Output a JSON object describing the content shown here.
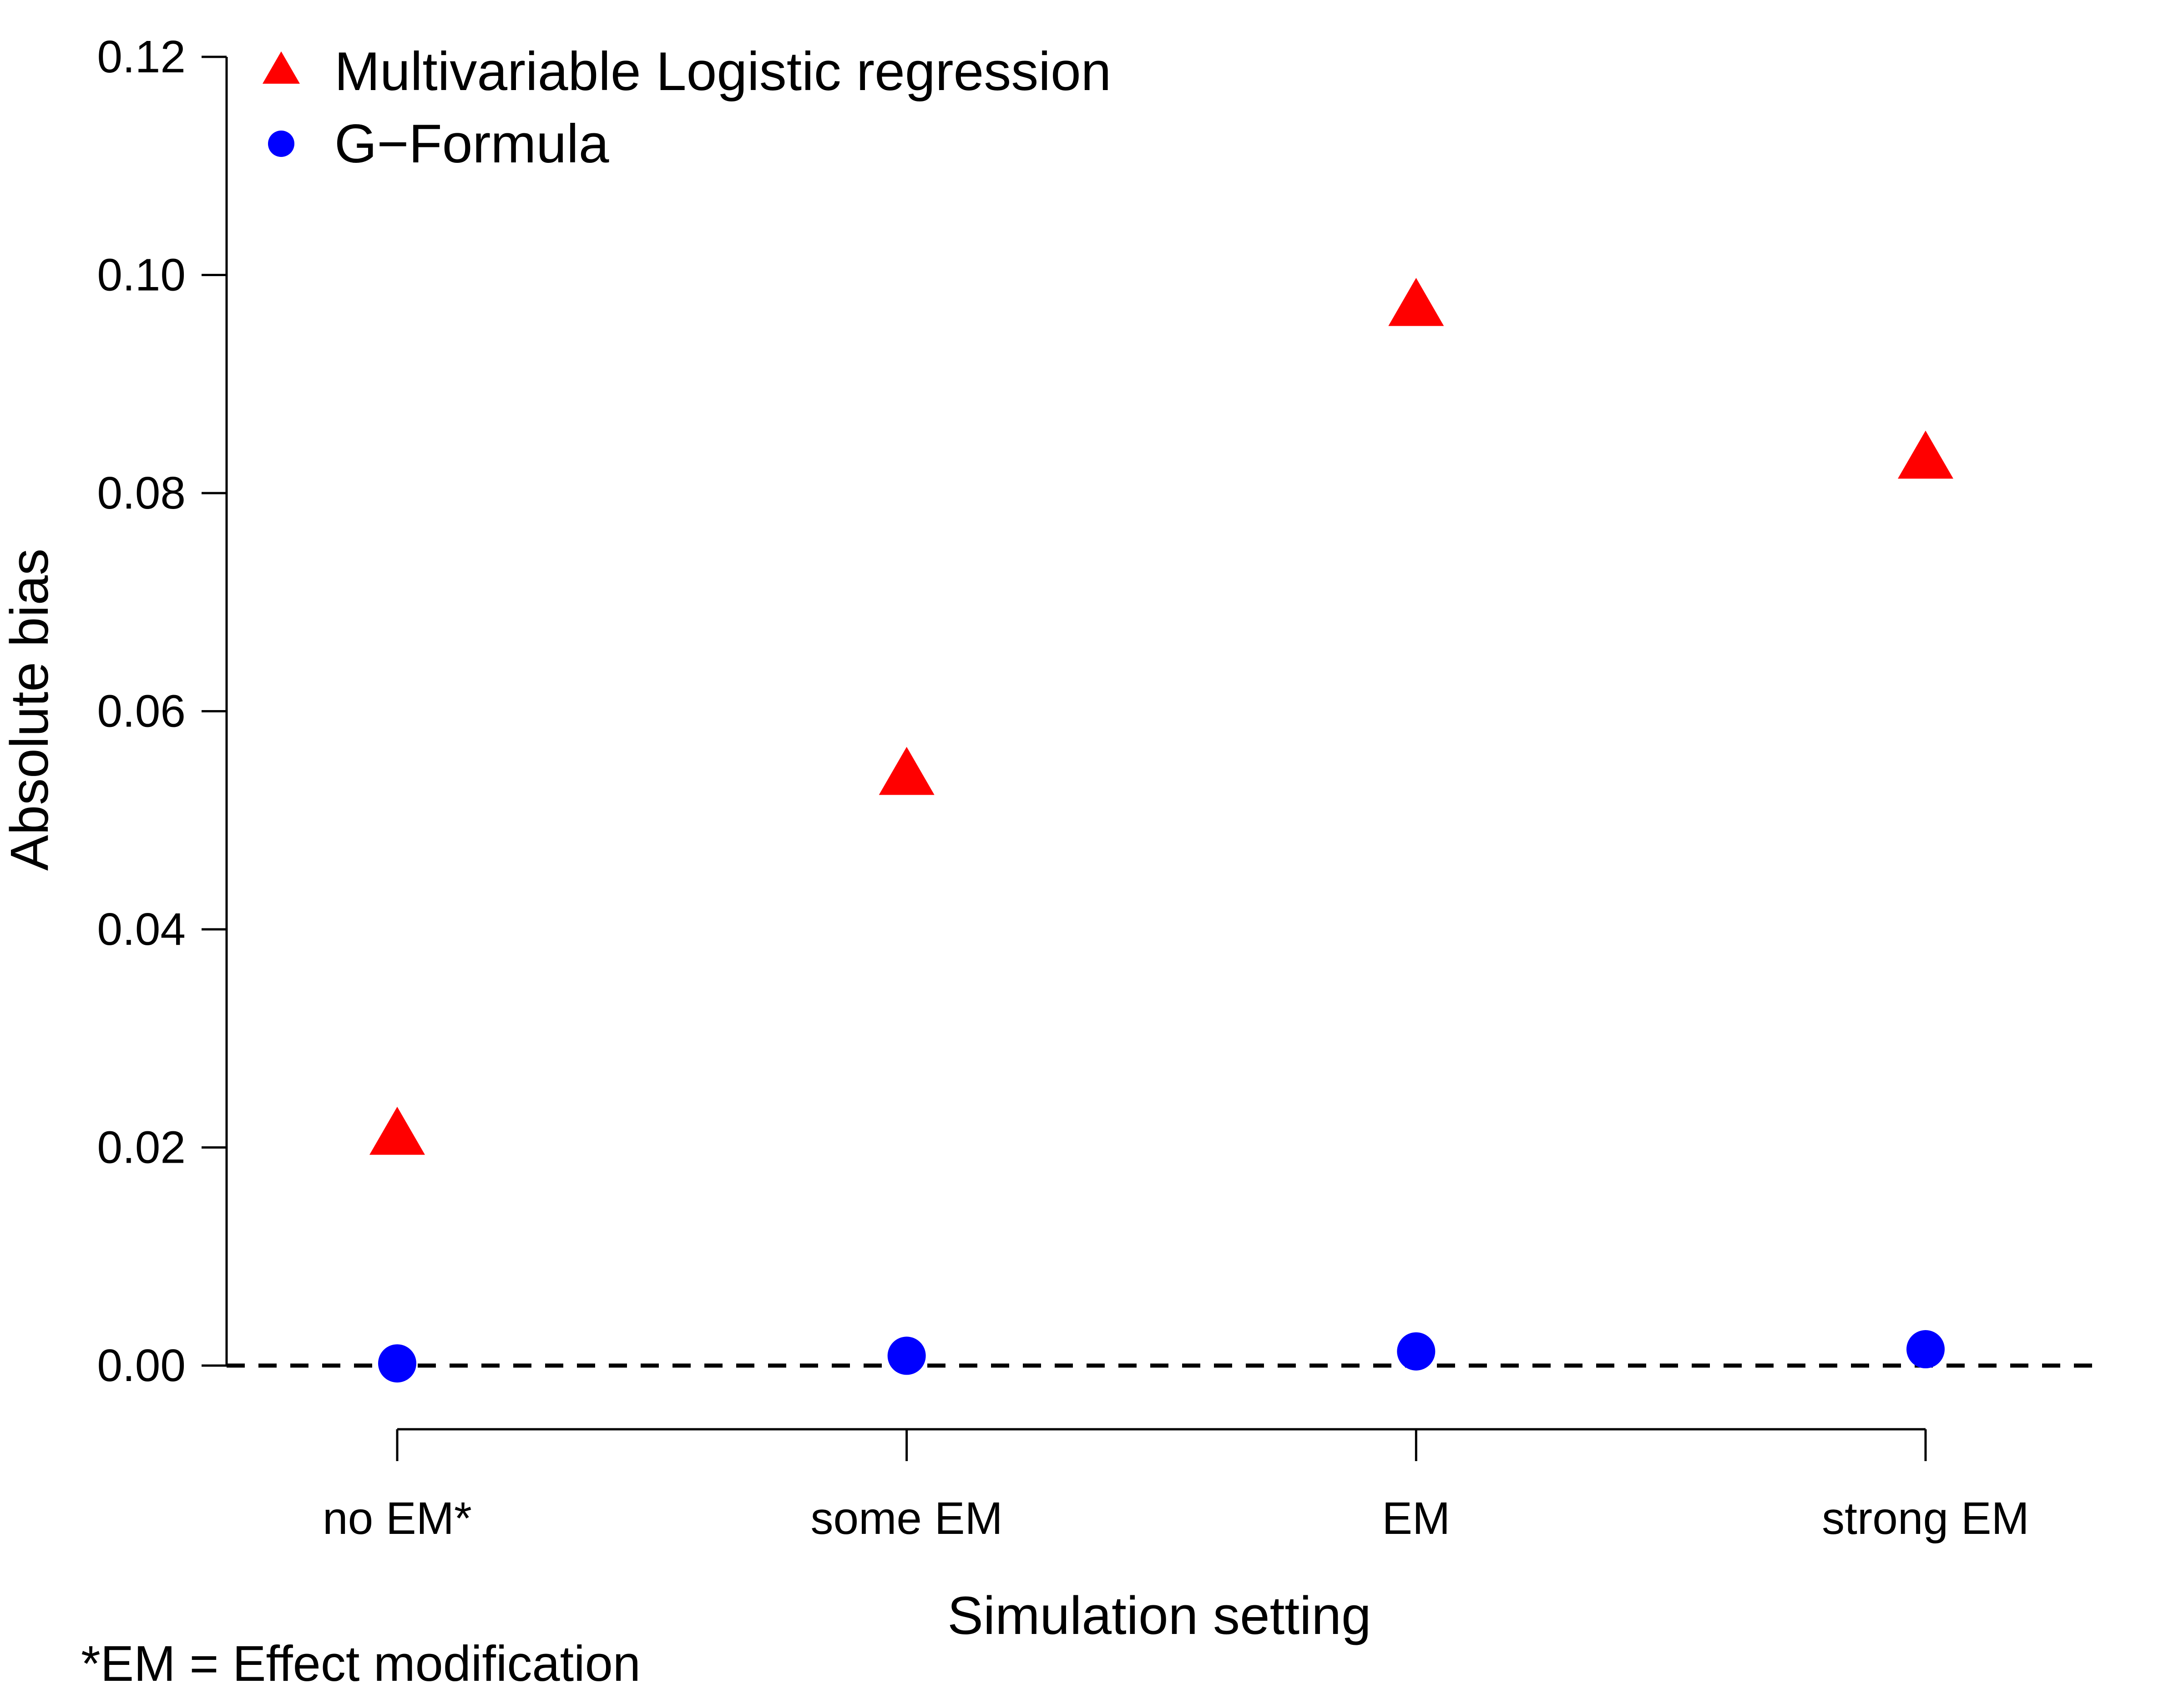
{
  "chart_data": {
    "type": "scatter",
    "xlabel": "Simulation setting",
    "ylabel": "Absolute bias",
    "categories": [
      "no EM*",
      "some EM",
      "EM",
      "strong EM"
    ],
    "ylim": [
      0,
      0.12
    ],
    "yticks": [
      "0.00",
      "0.02",
      "0.04",
      "0.06",
      "0.08",
      "0.10",
      "0.12"
    ],
    "series": [
      {
        "name": "Multivariable Logistic regression",
        "marker": "triangle",
        "color": "#ff0000",
        "values": [
          0.021,
          0.054,
          0.097,
          0.083
        ]
      },
      {
        "name": "G−Formula",
        "marker": "circle",
        "color": "#0000ff",
        "values": [
          0.0002,
          0.0009,
          0.0013,
          0.0015
        ]
      }
    ],
    "reference_line": {
      "y": 0,
      "style": "dashed",
      "color": "#000000"
    },
    "legend_position": "top-left",
    "grid": false,
    "footnote": "*EM = Effect modification"
  }
}
